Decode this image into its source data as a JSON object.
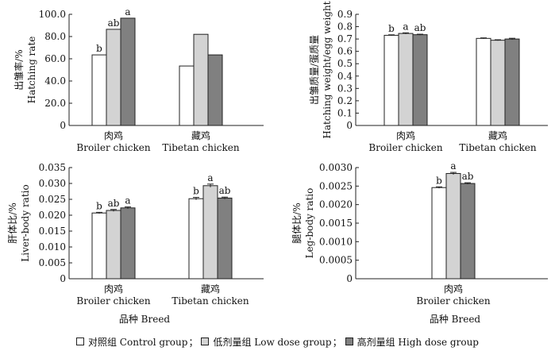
{
  "colors": {
    "control": "#ffffff",
    "low": "#d3d3d3",
    "high": "#808080",
    "stroke": "#222222"
  },
  "legend": {
    "separator": "；",
    "items": [
      {
        "key": "control",
        "label": "对照组 Control group"
      },
      {
        "key": "low",
        "label": "低剂量组 Low dose group"
      },
      {
        "key": "high",
        "label": "高剂量组 High dose group"
      }
    ]
  },
  "shared_xlabel": "品种 Breed",
  "chart_data": [
    {
      "id": "hatching-rate",
      "type": "bar",
      "ylabel_cn": "出雏率/%",
      "ylabel_en": "Hatching rate",
      "ylim": [
        0,
        100
      ],
      "ytick_labels": [
        "0",
        "20.0",
        "40.0",
        "60.0",
        "80.0",
        "100.0"
      ],
      "categories": [
        {
          "cn": "肉鸡",
          "en": "Broiler chicken"
        },
        {
          "cn": "藏鸡",
          "en": "Tibetan chicken"
        }
      ],
      "series": [
        {
          "name": "Control group",
          "key": "control",
          "values": [
            63.5,
            53.5
          ],
          "errors": [
            0,
            0
          ],
          "letters": [
            "b",
            ""
          ]
        },
        {
          "name": "Low dose group",
          "key": "low",
          "values": [
            86.5,
            82
          ],
          "errors": [
            0,
            0
          ],
          "letters": [
            "ab",
            ""
          ]
        },
        {
          "name": "High dose group",
          "key": "high",
          "values": [
            96.5,
            63.5
          ],
          "errors": [
            0,
            0
          ],
          "letters": [
            "a",
            ""
          ]
        }
      ]
    },
    {
      "id": "hatching-weight",
      "type": "bar",
      "ylabel_cn": "出雏质量/蛋质量",
      "ylabel_en": "Hatching weight/egg weight",
      "ylim": [
        0,
        0.9
      ],
      "ytick_labels": [
        "0",
        "0.1",
        "0.2",
        "0.3",
        "0.4",
        "0.5",
        "0.6",
        "0.7",
        "0.8",
        "0.9"
      ],
      "categories": [
        {
          "cn": "肉鸡",
          "en": "Broiler chicken"
        },
        {
          "cn": "藏鸡",
          "en": "Tibetan chicken"
        }
      ],
      "series": [
        {
          "name": "Control group",
          "key": "control",
          "values": [
            0.73,
            0.705
          ],
          "errors": [
            0.004,
            0.004
          ],
          "letters": [
            "b",
            ""
          ]
        },
        {
          "name": "Low dose group",
          "key": "low",
          "values": [
            0.745,
            0.69
          ],
          "errors": [
            0.005,
            0.004
          ],
          "letters": [
            "a",
            ""
          ]
        },
        {
          "name": "High dose group",
          "key": "high",
          "values": [
            0.735,
            0.7
          ],
          "errors": [
            0.004,
            0.006
          ],
          "letters": [
            "ab",
            ""
          ]
        }
      ]
    },
    {
      "id": "liver-body-ratio",
      "type": "bar",
      "ylabel_cn": "肝体比/%",
      "ylabel_en": "Liver-body ratio",
      "ylim": [
        0,
        0.035
      ],
      "ytick_labels": [
        "0",
        "0.005",
        "0.010",
        "0.015",
        "0.020",
        "0.025",
        "0.030",
        "0.035"
      ],
      "categories": [
        {
          "cn": "肉鸡",
          "en": "Broiler chicken"
        },
        {
          "cn": "藏鸡",
          "en": "Tibetan chicken"
        }
      ],
      "series": [
        {
          "name": "Control group",
          "key": "control",
          "values": [
            0.0207,
            0.0252
          ],
          "errors": [
            0.0002,
            0.0004
          ],
          "letters": [
            "b",
            "b"
          ]
        },
        {
          "name": "Low dose group",
          "key": "low",
          "values": [
            0.0215,
            0.0293
          ],
          "errors": [
            0.0003,
            0.0005
          ],
          "letters": [
            "ab",
            "a"
          ]
        },
        {
          "name": "High dose group",
          "key": "high",
          "values": [
            0.0223,
            0.0254
          ],
          "errors": [
            0.0003,
            0.0003
          ],
          "letters": [
            "a",
            "ab"
          ]
        }
      ]
    },
    {
      "id": "leg-body-ratio",
      "type": "bar",
      "ylabel_cn": "腿体比/%",
      "ylabel_en": "Leg-body ratio",
      "ylim": [
        0,
        0.003
      ],
      "ytick_labels": [
        "0",
        "0.0005",
        "0.0010",
        "0.0015",
        "0.0020",
        "0.0025",
        "0.0030"
      ],
      "categories": [
        {
          "cn": "肉鸡",
          "en": "Broiler chicken"
        }
      ],
      "series": [
        {
          "name": "Control group",
          "key": "control",
          "values": [
            0.00246
          ],
          "errors": [
            2e-05
          ],
          "letters": [
            "b"
          ]
        },
        {
          "name": "Low dose group",
          "key": "low",
          "values": [
            0.00284
          ],
          "errors": [
            3e-05
          ],
          "letters": [
            "a"
          ]
        },
        {
          "name": "High dose group",
          "key": "high",
          "values": [
            0.00257
          ],
          "errors": [
            2e-05
          ],
          "letters": [
            "ab"
          ]
        }
      ]
    }
  ]
}
